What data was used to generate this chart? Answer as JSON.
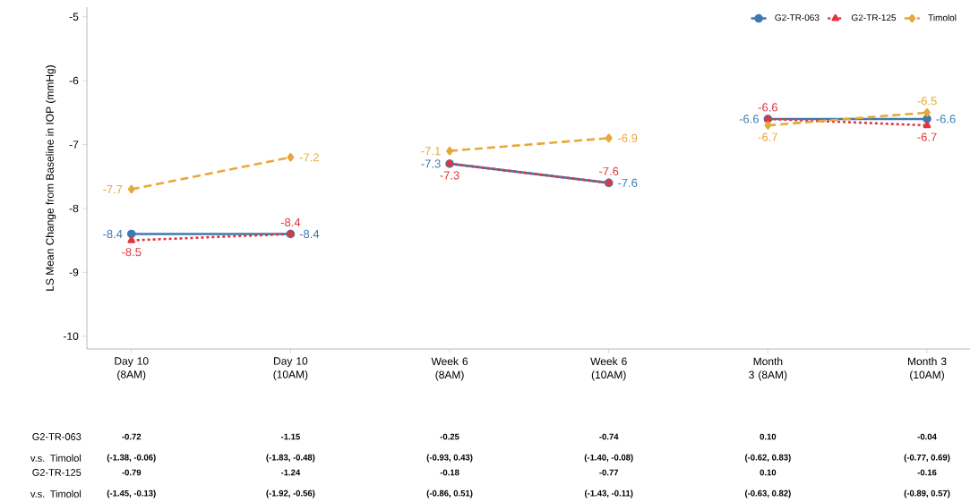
{
  "chart_data": {
    "type": "line",
    "ylabel": "LS Mean Change from Baseline in IOP (mmHg)",
    "categories": [
      "Day 10 (8AM)",
      "Day 10 (10AM)",
      "Week 6 (8AM)",
      "Week 6 (10AM)",
      "Month 3 (8AM)",
      "Month 3 (10AM)"
    ],
    "series": [
      {
        "name": "G2-TR-063",
        "color": "#3d7ab0",
        "marker": "circle",
        "line_style": "solid",
        "values": [
          -8.4,
          -8.4,
          -7.3,
          -7.6,
          -6.6,
          -6.6
        ]
      },
      {
        "name": "G2-TR-125",
        "color": "#e0363c",
        "marker": "triangle",
        "line_style": "dotted",
        "values": [
          -8.5,
          -8.4,
          -7.3,
          -7.6,
          -6.6,
          -6.7
        ]
      },
      {
        "name": "Timolol",
        "color": "#e8a838",
        "marker": "diamond",
        "line_style": "dashed",
        "values": [
          -7.7,
          -7.2,
          -7.1,
          -6.9,
          -6.7,
          -6.5
        ]
      }
    ],
    "ylim": [
      -10.2,
      -4.85
    ],
    "yticks": [
      -10,
      -9,
      -8,
      -7,
      -6,
      -5
    ],
    "data_labels": true,
    "legend": "top right",
    "grid": false,
    "annotations": [
      "G2-TR-063 v.s. Timolol",
      "-0.72",
      "-1.15",
      "-0.25",
      "-0.74",
      "0.10",
      "-0.04",
      "(-1.38, -0.06)",
      "(-1.83, -0.48)",
      "(-0.93, 0.43)",
      "(-1.40, -0.08)",
      "(-0.62, 0.83)",
      "(-0.77, 0.69)",
      "G2-TR-125 v.s. Timolol",
      "-0.79",
      "-1.24",
      "-0.18",
      "-0.77",
      "0.10",
      "-0.16",
      "(-1.45, -0.13)",
      "(-1.92, -0.56)",
      "(-0.86, 0.51)",
      "(-1.43, -0.11)",
      "(-0.63, 0.82)",
      "(-0.89, 0.57)"
    ]
  }
}
